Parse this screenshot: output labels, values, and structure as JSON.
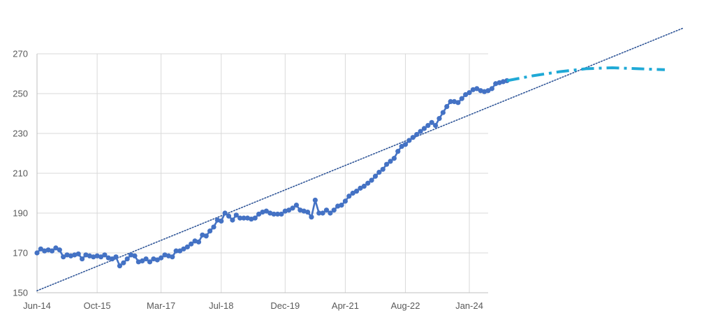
{
  "chart_data": {
    "type": "line",
    "title": "",
    "xlabel": "",
    "ylabel": "",
    "x_start": "2014-06",
    "x_end_axis": "2024-06",
    "ylim": [
      150,
      270
    ],
    "y_ticks": [
      150,
      170,
      190,
      210,
      230,
      250,
      270
    ],
    "x_ticks": [
      {
        "date": "2014-06",
        "label": "Jun-14"
      },
      {
        "date": "2015-10",
        "label": "Oct-15"
      },
      {
        "date": "2017-03",
        "label": "Mar-17"
      },
      {
        "date": "2018-07",
        "label": "Jul-18"
      },
      {
        "date": "2019-12",
        "label": "Dec-19"
      },
      {
        "date": "2021-04",
        "label": "Apr-21"
      },
      {
        "date": "2022-08",
        "label": "Aug-22"
      },
      {
        "date": "2024-01",
        "label": "Jan-24"
      }
    ],
    "grid": true,
    "legend": "none",
    "series": [
      {
        "style": "line-markers",
        "color": "#4472C4",
        "points": [
          [
            "2014-06",
            170
          ],
          [
            "2014-07",
            172
          ],
          [
            "2014-08",
            171
          ],
          [
            "2014-09",
            171.5
          ],
          [
            "2014-10",
            171
          ],
          [
            "2014-11",
            172.5
          ],
          [
            "2014-12",
            171.5
          ],
          [
            "2015-01",
            168
          ],
          [
            "2015-02",
            169
          ],
          [
            "2015-03",
            168.5
          ],
          [
            "2015-04",
            169
          ],
          [
            "2015-05",
            169.5
          ],
          [
            "2015-06",
            167
          ],
          [
            "2015-07",
            169
          ],
          [
            "2015-08",
            168.5
          ],
          [
            "2015-09",
            168
          ],
          [
            "2015-10",
            168.5
          ],
          [
            "2015-11",
            168
          ],
          [
            "2015-12",
            169
          ],
          [
            "2016-01",
            167.5
          ],
          [
            "2016-02",
            167
          ],
          [
            "2016-03",
            168
          ],
          [
            "2016-04",
            163.5
          ],
          [
            "2016-05",
            165
          ],
          [
            "2016-06",
            167
          ],
          [
            "2016-07",
            169
          ],
          [
            "2016-08",
            168.5
          ],
          [
            "2016-09",
            165.5
          ],
          [
            "2016-10",
            166
          ],
          [
            "2016-11",
            167
          ],
          [
            "2016-12",
            165.5
          ],
          [
            "2017-01",
            167
          ],
          [
            "2017-02",
            166.5
          ],
          [
            "2017-03",
            167.5
          ],
          [
            "2017-04",
            169
          ],
          [
            "2017-05",
            168.5
          ],
          [
            "2017-06",
            168
          ],
          [
            "2017-07",
            171
          ],
          [
            "2017-08",
            171
          ],
          [
            "2017-09",
            172
          ],
          [
            "2017-10",
            173
          ],
          [
            "2017-11",
            174.5
          ],
          [
            "2017-12",
            176
          ],
          [
            "2018-01",
            175.5
          ],
          [
            "2018-02",
            179
          ],
          [
            "2018-03",
            178.5
          ],
          [
            "2018-04",
            181
          ],
          [
            "2018-05",
            183
          ],
          [
            "2018-06",
            186.5
          ],
          [
            "2018-07",
            186
          ],
          [
            "2018-08",
            190
          ],
          [
            "2018-09",
            188.5
          ],
          [
            "2018-10",
            186.5
          ],
          [
            "2018-11",
            189
          ],
          [
            "2018-12",
            187.5
          ],
          [
            "2019-01",
            187.5
          ],
          [
            "2019-02",
            187.5
          ],
          [
            "2019-03",
            187
          ],
          [
            "2019-04",
            187.5
          ],
          [
            "2019-05",
            189.5
          ],
          [
            "2019-06",
            190.5
          ],
          [
            "2019-07",
            191
          ],
          [
            "2019-08",
            190
          ],
          [
            "2019-09",
            189.5
          ],
          [
            "2019-10",
            189.5
          ],
          [
            "2019-11",
            189.5
          ],
          [
            "2019-12",
            191
          ],
          [
            "2020-01",
            191.5
          ],
          [
            "2020-02",
            192.5
          ],
          [
            "2020-03",
            194
          ],
          [
            "2020-04",
            191.5
          ],
          [
            "2020-05",
            191
          ],
          [
            "2020-06",
            190.5
          ],
          [
            "2020-07",
            188
          ],
          [
            "2020-08",
            196.5
          ],
          [
            "2020-09",
            190
          ],
          [
            "2020-10",
            190
          ],
          [
            "2020-11",
            191.5
          ],
          [
            "2020-12",
            190
          ],
          [
            "2021-01",
            191.5
          ],
          [
            "2021-02",
            193.5
          ],
          [
            "2021-03",
            194
          ],
          [
            "2021-04",
            196
          ],
          [
            "2021-05",
            198.5
          ],
          [
            "2021-06",
            200
          ],
          [
            "2021-07",
            201
          ],
          [
            "2021-08",
            202.5
          ],
          [
            "2021-09",
            203.5
          ],
          [
            "2021-10",
            205
          ],
          [
            "2021-11",
            206.5
          ],
          [
            "2021-12",
            208.5
          ],
          [
            "2022-01",
            210.5
          ],
          [
            "2022-02",
            212
          ],
          [
            "2022-03",
            214.5
          ],
          [
            "2022-04",
            216
          ],
          [
            "2022-05",
            217.5
          ],
          [
            "2022-06",
            221
          ],
          [
            "2022-07",
            223.5
          ],
          [
            "2022-08",
            224.5
          ],
          [
            "2022-09",
            226.5
          ],
          [
            "2022-10",
            228
          ],
          [
            "2022-11",
            229.5
          ],
          [
            "2022-12",
            231
          ],
          [
            "2023-01",
            232.5
          ],
          [
            "2023-02",
            234
          ],
          [
            "2023-03",
            235.5
          ],
          [
            "2023-04",
            234
          ],
          [
            "2023-05",
            237.5
          ],
          [
            "2023-06",
            240.5
          ],
          [
            "2023-07",
            243.5
          ],
          [
            "2023-08",
            246
          ],
          [
            "2023-09",
            246
          ],
          [
            "2023-10",
            245.5
          ],
          [
            "2023-11",
            247.5
          ],
          [
            "2023-12",
            249.5
          ],
          [
            "2024-01",
            250.5
          ],
          [
            "2024-02",
            252
          ],
          [
            "2024-03",
            252.5
          ],
          [
            "2024-04",
            251.5
          ],
          [
            "2024-05",
            251
          ],
          [
            "2024-06",
            251.5
          ],
          [
            "2024-07",
            252.5
          ],
          [
            "2024-08",
            255
          ],
          [
            "2024-09",
            255.5
          ],
          [
            "2024-10",
            256
          ],
          [
            "2024-11",
            256.5
          ]
        ]
      },
      {
        "style": "dash-dot",
        "color": "#1FA9D6",
        "points": [
          [
            "2024-11",
            256.5
          ],
          [
            "2025-06",
            259
          ],
          [
            "2026-01",
            261
          ],
          [
            "2026-08",
            262.5
          ],
          [
            "2027-03",
            263
          ],
          [
            "2027-10",
            262.5
          ],
          [
            "2028-05",
            262
          ]
        ]
      },
      {
        "style": "dotted-trendline",
        "color": "#2F5597",
        "points": [
          [
            "2014-06",
            151
          ],
          [
            "2028-10",
            283
          ]
        ]
      }
    ]
  }
}
